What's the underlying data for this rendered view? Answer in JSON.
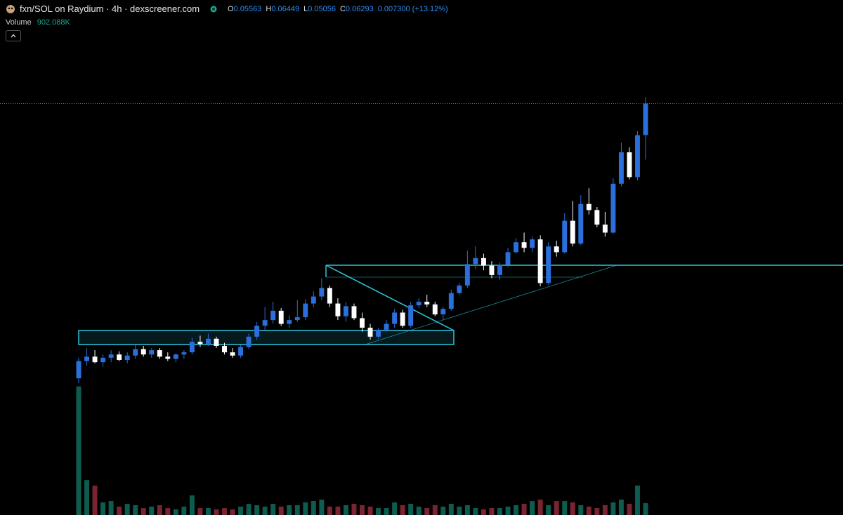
{
  "chart_data": {
    "type": "candlestick",
    "title": "fxn/SOL on Raydium · 4h · dexscreener.com",
    "legend_letters": {
      "open": "O",
      "high": "H",
      "low": "L",
      "close": "C"
    },
    "change": "0.007300 (+13.12%)",
    "log_scale": true,
    "ylim": [
      0.018,
      0.08
    ],
    "up_color": "#2a6fdb",
    "down_color": "#ffffff",
    "open": [
      0.0215,
      0.023,
      0.0234,
      0.0229,
      0.0233,
      0.0236,
      0.0231,
      0.0235,
      0.0241,
      0.0236,
      0.024,
      0.0234,
      0.0232,
      0.0236,
      0.0238,
      0.0248,
      0.0246,
      0.0251,
      0.0244,
      0.0238,
      0.0235,
      0.0243,
      0.0253,
      0.0264,
      0.027,
      0.028,
      0.0266,
      0.027,
      0.0273,
      0.0288,
      0.0296,
      0.0306,
      0.0288,
      0.0274,
      0.0285,
      0.0272,
      0.0262,
      0.0253,
      0.026,
      0.0266,
      0.0278,
      0.0264,
      0.0286,
      0.029,
      0.0287,
      0.0276,
      0.0282,
      0.03,
      0.0309,
      0.0336,
      0.0344,
      0.0334,
      0.0322,
      0.0335,
      0.0352,
      0.0366,
      0.0358,
      0.037,
      0.0312,
      0.036,
      0.0352,
      0.0398,
      0.0364,
      0.0425,
      0.0415,
      0.0392,
      0.038,
      0.046,
      0.052,
      0.0472,
      0.05563
    ],
    "high": [
      0.0233,
      0.0242,
      0.024,
      0.0236,
      0.024,
      0.0239,
      0.0238,
      0.0245,
      0.0244,
      0.0242,
      0.0242,
      0.0238,
      0.0237,
      0.024,
      0.0252,
      0.0254,
      0.0256,
      0.0253,
      0.0247,
      0.0242,
      0.0245,
      0.0256,
      0.0268,
      0.0284,
      0.029,
      0.0283,
      0.0275,
      0.0292,
      0.0293,
      0.0302,
      0.0318,
      0.0309,
      0.0294,
      0.029,
      0.0288,
      0.0278,
      0.0266,
      0.0262,
      0.027,
      0.0282,
      0.0281,
      0.029,
      0.0294,
      0.0298,
      0.029,
      0.0284,
      0.0304,
      0.0312,
      0.0354,
      0.036,
      0.035,
      0.034,
      0.0338,
      0.0358,
      0.0372,
      0.038,
      0.0374,
      0.0376,
      0.0366,
      0.0368,
      0.041,
      0.043,
      0.044,
      0.0452,
      0.042,
      0.0412,
      0.047,
      0.054,
      0.053,
      0.0565,
      0.06449
    ],
    "low": [
      0.0211,
      0.0226,
      0.0228,
      0.0225,
      0.0229,
      0.023,
      0.0228,
      0.0232,
      0.0234,
      0.0233,
      0.0232,
      0.023,
      0.0229,
      0.0232,
      0.0236,
      0.0243,
      0.0244,
      0.0242,
      0.0236,
      0.0233,
      0.0233,
      0.0241,
      0.025,
      0.026,
      0.0266,
      0.0264,
      0.0262,
      0.0268,
      0.027,
      0.0284,
      0.0292,
      0.0284,
      0.027,
      0.0268,
      0.027,
      0.0258,
      0.025,
      0.0251,
      0.0258,
      0.0262,
      0.0262,
      0.0262,
      0.0283,
      0.0284,
      0.0274,
      0.027,
      0.028,
      0.0298,
      0.0306,
      0.033,
      0.0328,
      0.0318,
      0.0316,
      0.0332,
      0.035,
      0.0352,
      0.0352,
      0.0308,
      0.031,
      0.0346,
      0.035,
      0.036,
      0.0362,
      0.0408,
      0.0388,
      0.0374,
      0.0378,
      0.0455,
      0.0468,
      0.0466,
      0.05056
    ],
    "close": [
      0.023,
      0.0234,
      0.0229,
      0.0233,
      0.0236,
      0.0231,
      0.0235,
      0.0241,
      0.0236,
      0.024,
      0.0234,
      0.0232,
      0.0236,
      0.0238,
      0.0248,
      0.0246,
      0.0251,
      0.0244,
      0.0238,
      0.0235,
      0.0243,
      0.0253,
      0.0264,
      0.027,
      0.028,
      0.0266,
      0.027,
      0.0273,
      0.0288,
      0.0296,
      0.0306,
      0.0288,
      0.0274,
      0.0285,
      0.0272,
      0.0262,
      0.0253,
      0.026,
      0.0266,
      0.0278,
      0.0264,
      0.0286,
      0.029,
      0.0287,
      0.0276,
      0.0282,
      0.03,
      0.0309,
      0.0336,
      0.0344,
      0.0334,
      0.0322,
      0.0335,
      0.0352,
      0.0366,
      0.0358,
      0.037,
      0.0312,
      0.036,
      0.0352,
      0.0398,
      0.0364,
      0.0425,
      0.0415,
      0.0392,
      0.038,
      0.046,
      0.052,
      0.0472,
      0.0556,
      0.06293
    ],
    "volume": {
      "name": "Volume",
      "last_label": "902.088K",
      "ylim": [
        0,
        10000000
      ],
      "up_color": "#0e5c4f",
      "down_color": "#7a2431",
      "values": [
        9752000,
        2650000,
        2226000,
        954000,
        1060000,
        636000,
        848000,
        742000,
        530000,
        636000,
        742000,
        530000,
        424000,
        636000,
        1484000,
        530000,
        530000,
        424000,
        530000,
        424000,
        636000,
        848000,
        742000,
        636000,
        848000,
        636000,
        742000,
        742000,
        954000,
        1060000,
        1166000,
        636000,
        636000,
        742000,
        848000,
        742000,
        636000,
        530000,
        530000,
        954000,
        742000,
        848000,
        636000,
        530000,
        742000,
        636000,
        848000,
        636000,
        742000,
        530000,
        424000,
        530000,
        530000,
        636000,
        742000,
        848000,
        1060000,
        1166000,
        742000,
        1060000,
        1060000,
        954000,
        742000,
        636000,
        530000,
        742000,
        954000,
        1166000,
        848000,
        2226000,
        902088
      ]
    }
  }
}
